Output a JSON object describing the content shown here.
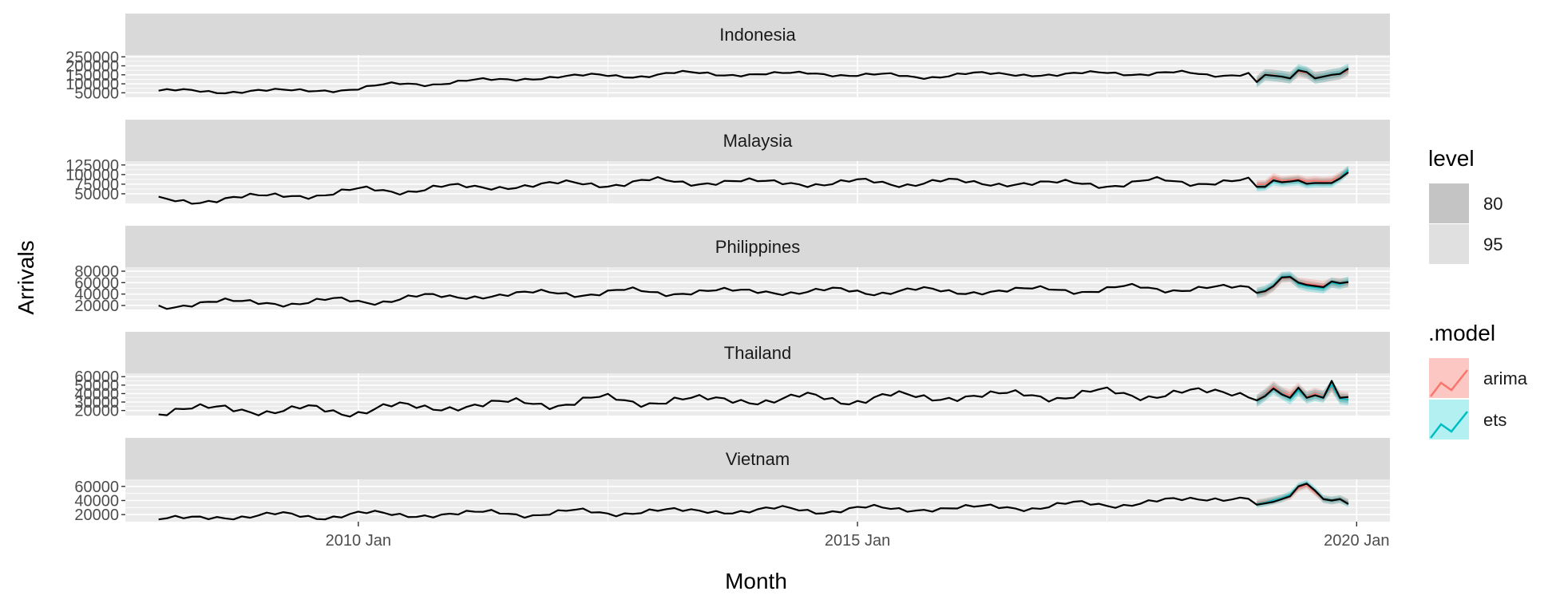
{
  "chart_data": {
    "type": "line",
    "xlabel": "Month",
    "ylabel": "Arrivals",
    "x_ticks": [
      "2010 Jan",
      "2015 Jan",
      "2020 Jan"
    ],
    "x_range": [
      "2007 Sep",
      "2020 May"
    ],
    "observed_start": "2008 Jan",
    "observed_end": "2019 Dec",
    "forecast_start": "2019 Jan",
    "colors": {
      "panel": "#ebebeb",
      "strip": "#d9d9d9",
      "grid": "#ffffff",
      "observed": "#000000",
      "arima": "#f8766d",
      "ets": "#00bfc4",
      "level80": "#c4c4c4",
      "level95": "#e0e0e0"
    },
    "legend": {
      "level": {
        "title": "level",
        "items": [
          "80",
          "95"
        ]
      },
      "model": {
        "title": ".model",
        "items": [
          "arima",
          "ets"
        ]
      }
    },
    "panels": [
      {
        "name": "Indonesia",
        "yticks": [
          50000,
          100000,
          150000,
          200000,
          250000
        ],
        "ylim": [
          25000,
          260000
        ],
        "keys": [
          [
            0,
            62000
          ],
          [
            3,
            55000
          ],
          [
            12,
            62000
          ],
          [
            18,
            60000
          ],
          [
            24,
            75000
          ],
          [
            30,
            100000
          ],
          [
            36,
            110000
          ],
          [
            42,
            125000
          ],
          [
            48,
            140000
          ],
          [
            54,
            145000
          ],
          [
            60,
            150000
          ],
          [
            66,
            160000
          ],
          [
            72,
            150000
          ],
          [
            78,
            160000
          ],
          [
            84,
            150000
          ],
          [
            90,
            140000
          ],
          [
            96,
            150000
          ],
          [
            102,
            155000
          ],
          [
            108,
            150000
          ],
          [
            114,
            160000
          ],
          [
            120,
            160000
          ],
          [
            126,
            150000
          ],
          [
            132,
            160000
          ],
          [
            138,
            165000
          ],
          [
            143,
            175000
          ]
        ],
        "amp": 18000,
        "forecast": [
          110000,
          150000,
          145000,
          140000,
          130000,
          175000,
          165000,
          130000,
          140000,
          150000,
          155000,
          185000
        ],
        "arima_fc": [
          115000,
          150000,
          148000,
          140000,
          135000,
          170000,
          160000,
          135000,
          140000,
          148000,
          155000,
          175000
        ],
        "ets_fc": [
          110000,
          150000,
          145000,
          142000,
          132000,
          178000,
          165000,
          132000,
          140000,
          150000,
          158000,
          182000
        ],
        "band80": 18000,
        "band95": 32000
      },
      {
        "name": "Malaysia",
        "yticks": [
          50000,
          75000,
          100000,
          125000
        ],
        "ylim": [
          25000,
          135000
        ],
        "keys": [
          [
            0,
            30000
          ],
          [
            6,
            35000
          ],
          [
            12,
            42000
          ],
          [
            18,
            48000
          ],
          [
            24,
            56000
          ],
          [
            30,
            62000
          ],
          [
            36,
            66000
          ],
          [
            42,
            70000
          ],
          [
            48,
            74000
          ],
          [
            54,
            78000
          ],
          [
            60,
            80000
          ],
          [
            66,
            82000
          ],
          [
            72,
            80000
          ],
          [
            78,
            78000
          ],
          [
            84,
            78000
          ],
          [
            90,
            80000
          ],
          [
            96,
            79000
          ],
          [
            102,
            78000
          ],
          [
            108,
            76000
          ],
          [
            114,
            76000
          ],
          [
            120,
            80000
          ],
          [
            126,
            82000
          ],
          [
            132,
            82000
          ],
          [
            138,
            84000
          ],
          [
            143,
            96000
          ]
        ],
        "amp": 14000,
        "forecast": [
          68000,
          68000,
          85000,
          80000,
          82000,
          85000,
          76000,
          78000,
          78000,
          78000,
          90000,
          106000
        ],
        "arima_fc": [
          74000,
          74000,
          92000,
          84000,
          86000,
          88000,
          82000,
          84000,
          82000,
          84000,
          95000,
          110000
        ],
        "ets_fc": [
          68000,
          70000,
          84000,
          80000,
          82000,
          84000,
          76000,
          78000,
          78000,
          78000,
          92000,
          112000
        ],
        "band80": 7000,
        "band95": 12000
      },
      {
        "name": "Philippines",
        "yticks": [
          20000,
          40000,
          60000,
          80000
        ],
        "ylim": [
          13000,
          87000
        ],
        "keys": [
          [
            0,
            20000
          ],
          [
            8,
            26000
          ],
          [
            16,
            25000
          ],
          [
            24,
            28000
          ],
          [
            32,
            34000
          ],
          [
            40,
            38000
          ],
          [
            48,
            42000
          ],
          [
            56,
            43000
          ],
          [
            64,
            44000
          ],
          [
            72,
            45000
          ],
          [
            80,
            44000
          ],
          [
            88,
            46000
          ],
          [
            96,
            44000
          ],
          [
            104,
            47000
          ],
          [
            112,
            48000
          ],
          [
            120,
            50000
          ],
          [
            128,
            50000
          ],
          [
            136,
            52000
          ],
          [
            143,
            54000
          ]
        ],
        "amp": 9000,
        "forecast": [
          42000,
          45000,
          54000,
          69000,
          70000,
          60000,
          56000,
          54000,
          52000,
          62000,
          59000,
          61000
        ],
        "arima_fc": [
          42000,
          44000,
          53000,
          68000,
          69000,
          60000,
          58000,
          56000,
          54000,
          60000,
          59000,
          60000
        ],
        "ets_fc": [
          42000,
          46000,
          55000,
          70000,
          71000,
          58000,
          54000,
          52000,
          50000,
          60000,
          57000,
          62000
        ],
        "band80": 5000,
        "band95": 9000
      },
      {
        "name": "Thailand",
        "yticks": [
          20000,
          30000,
          40000,
          50000,
          60000
        ],
        "ylim": [
          14000,
          64000
        ],
        "keys": [
          [
            0,
            18000
          ],
          [
            8,
            23000
          ],
          [
            16,
            19000
          ],
          [
            24,
            21000
          ],
          [
            32,
            24000
          ],
          [
            40,
            27000
          ],
          [
            48,
            30000
          ],
          [
            56,
            32000
          ],
          [
            64,
            32000
          ],
          [
            72,
            33000
          ],
          [
            80,
            34000
          ],
          [
            88,
            35000
          ],
          [
            96,
            37000
          ],
          [
            104,
            38000
          ],
          [
            112,
            39000
          ],
          [
            120,
            40000
          ],
          [
            128,
            41000
          ],
          [
            136,
            40000
          ],
          [
            143,
            36000
          ]
        ],
        "amp": 9000,
        "forecast": [
          32000,
          37000,
          46000,
          39000,
          35000,
          47000,
          35000,
          38000,
          35000,
          55000,
          35000,
          36000
        ],
        "arima_fc": [
          32000,
          39000,
          48000,
          41000,
          38000,
          46000,
          36000,
          40000,
          37000,
          48000,
          36000,
          35000
        ],
        "ets_fc": [
          31000,
          38000,
          46000,
          40000,
          34000,
          44000,
          35000,
          38000,
          36000,
          50000,
          34000,
          33000
        ],
        "band80": 4000,
        "band95": 7000
      },
      {
        "name": "Vietnam",
        "yticks": [
          20000,
          40000,
          60000
        ],
        "ylim": [
          10000,
          70000
        ],
        "keys": [
          [
            0,
            12000
          ],
          [
            8,
            18000
          ],
          [
            16,
            18000
          ],
          [
            24,
            20000
          ],
          [
            32,
            20000
          ],
          [
            40,
            22000
          ],
          [
            48,
            22000
          ],
          [
            56,
            24000
          ],
          [
            64,
            25000
          ],
          [
            72,
            26000
          ],
          [
            80,
            27000
          ],
          [
            88,
            28000
          ],
          [
            96,
            29000
          ],
          [
            104,
            31000
          ],
          [
            112,
            34000
          ],
          [
            120,
            38000
          ],
          [
            128,
            44000
          ],
          [
            136,
            48000
          ],
          [
            143,
            44000
          ]
        ],
        "amp": 7000,
        "forecast": [
          34000,
          36000,
          38000,
          42000,
          46000,
          60000,
          64000,
          54000,
          42000,
          40000,
          42000,
          35000
        ],
        "arima_fc": [
          36000,
          38000,
          40000,
          43000,
          46000,
          58000,
          62000,
          52000,
          42000,
          40000,
          42000,
          37000
        ],
        "ets_fc": [
          35000,
          37000,
          40000,
          43000,
          48000,
          60000,
          64000,
          54000,
          42000,
          40000,
          42000,
          36000
        ],
        "band80": 3000,
        "band95": 5500
      }
    ]
  }
}
